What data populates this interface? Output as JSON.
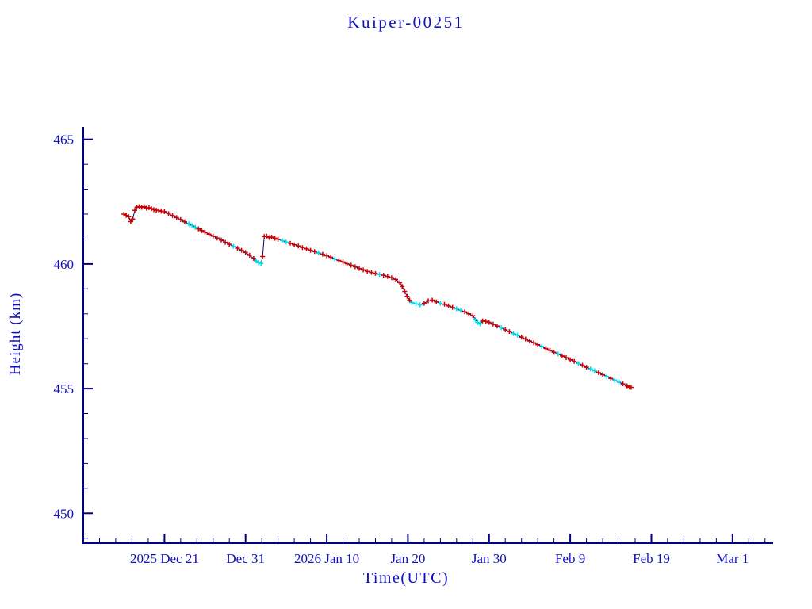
{
  "chart_data": {
    "type": "line",
    "title": "Kuiper-00251",
    "xlabel": "Time(UTC)",
    "ylabel": "Height (km)",
    "legend": "none",
    "grid": false,
    "colors": {
      "background": "#ffffff",
      "axis": "#000080",
      "text": "#0f0fc0",
      "line": "#000080",
      "marker_primary": "#cc0000",
      "marker_secondary": "#00dde8"
    },
    "x_axis": {
      "description": "x values are days relative to 2025 Dec 21 00:00 UTC",
      "range_days": [
        -10,
        75
      ],
      "tick_days": [
        0,
        10,
        20,
        30,
        40,
        50,
        60,
        70
      ],
      "tick_labels": [
        "2025 Dec 21",
        "Dec 31",
        "2026 Jan 10",
        "Jan 20",
        "Jan 30",
        "Feb 9",
        "Feb 19",
        "Mar 1"
      ],
      "minor_step_days": 2
    },
    "y_axis": {
      "range": [
        448.8,
        465.5
      ],
      "ticks": [
        450,
        455,
        460,
        465
      ],
      "minor_step": 1
    },
    "series": [
      {
        "name": "height_km",
        "marker_legend": "r = red plus marker, c = cyan plus marker",
        "points": [
          [
            -5.0,
            462.0,
            "r"
          ],
          [
            -4.7,
            461.95,
            "r"
          ],
          [
            -4.4,
            461.9,
            "r"
          ],
          [
            -4.15,
            461.7,
            "r"
          ],
          [
            -3.9,
            461.8,
            "r"
          ],
          [
            -3.65,
            462.15,
            "r"
          ],
          [
            -3.4,
            462.28,
            "r"
          ],
          [
            -3.1,
            462.3,
            "r"
          ],
          [
            -2.8,
            462.27,
            "r"
          ],
          [
            -2.5,
            462.3,
            "r"
          ],
          [
            -2.2,
            462.24,
            "r"
          ],
          [
            -1.9,
            462.26,
            "r"
          ],
          [
            -1.6,
            462.22,
            "r"
          ],
          [
            -1.3,
            462.18,
            "r"
          ],
          [
            -1.0,
            462.16,
            "r"
          ],
          [
            -0.7,
            462.14,
            "r"
          ],
          [
            -0.4,
            462.12,
            "r"
          ],
          [
            0.0,
            462.1,
            "r"
          ],
          [
            0.5,
            462.02,
            "r"
          ],
          [
            1.0,
            461.94,
            "r"
          ],
          [
            1.5,
            461.86,
            "r"
          ],
          [
            2.0,
            461.78,
            "r"
          ],
          [
            2.5,
            461.69,
            "r"
          ],
          [
            3.0,
            461.61,
            "c"
          ],
          [
            3.4,
            461.54,
            "c"
          ],
          [
            3.8,
            461.47,
            "c"
          ],
          [
            4.2,
            461.41,
            "r"
          ],
          [
            4.6,
            461.34,
            "r"
          ],
          [
            5.0,
            461.28,
            "r"
          ],
          [
            5.5,
            461.2,
            "r"
          ],
          [
            6.0,
            461.12,
            "r"
          ],
          [
            6.5,
            461.04,
            "r"
          ],
          [
            7.0,
            460.96,
            "r"
          ],
          [
            7.5,
            460.87,
            "r"
          ],
          [
            8.0,
            460.79,
            "r"
          ],
          [
            8.5,
            460.71,
            "c"
          ],
          [
            9.0,
            460.63,
            "r"
          ],
          [
            9.5,
            460.55,
            "r"
          ],
          [
            10.0,
            460.46,
            "r"
          ],
          [
            10.5,
            460.35,
            "r"
          ],
          [
            11.0,
            460.22,
            "r"
          ],
          [
            11.3,
            460.12,
            "c"
          ],
          [
            11.6,
            460.05,
            "c"
          ],
          [
            11.9,
            460.02,
            "c"
          ],
          [
            12.1,
            460.3,
            "r"
          ],
          [
            12.3,
            461.1,
            "r"
          ],
          [
            12.6,
            461.12,
            "r"
          ],
          [
            12.9,
            461.06,
            "r"
          ],
          [
            13.2,
            461.08,
            "r"
          ],
          [
            13.6,
            461.03,
            "r"
          ],
          [
            14.0,
            460.99,
            "r"
          ],
          [
            14.5,
            460.94,
            "c"
          ],
          [
            15.0,
            460.88,
            "c"
          ],
          [
            15.5,
            460.83,
            "r"
          ],
          [
            16.0,
            460.77,
            "r"
          ],
          [
            16.5,
            460.72,
            "r"
          ],
          [
            17.0,
            460.66,
            "r"
          ],
          [
            17.5,
            460.61,
            "r"
          ],
          [
            18.0,
            460.55,
            "r"
          ],
          [
            18.5,
            460.5,
            "r"
          ],
          [
            19.0,
            460.44,
            "c"
          ],
          [
            19.5,
            460.39,
            "r"
          ],
          [
            20.0,
            460.33,
            "r"
          ],
          [
            20.5,
            460.27,
            "r"
          ],
          [
            21.0,
            460.2,
            "c"
          ],
          [
            21.5,
            460.14,
            "r"
          ],
          [
            22.0,
            460.08,
            "r"
          ],
          [
            22.5,
            460.01,
            "r"
          ],
          [
            23.0,
            459.95,
            "r"
          ],
          [
            23.5,
            459.89,
            "r"
          ],
          [
            24.0,
            459.82,
            "r"
          ],
          [
            24.5,
            459.76,
            "r"
          ],
          [
            25.0,
            459.7,
            "r"
          ],
          [
            25.5,
            459.66,
            "r"
          ],
          [
            26.0,
            459.62,
            "r"
          ],
          [
            26.5,
            459.58,
            "c"
          ],
          [
            27.0,
            459.55,
            "r"
          ],
          [
            27.5,
            459.5,
            "r"
          ],
          [
            28.0,
            459.45,
            "r"
          ],
          [
            28.5,
            459.38,
            "r"
          ],
          [
            29.0,
            459.25,
            "r"
          ],
          [
            29.3,
            459.1,
            "r"
          ],
          [
            29.6,
            458.9,
            "r"
          ],
          [
            29.9,
            458.7,
            "r"
          ],
          [
            30.2,
            458.55,
            "r"
          ],
          [
            30.5,
            458.45,
            "c"
          ],
          [
            31.0,
            458.4,
            "c"
          ],
          [
            31.5,
            458.36,
            "c"
          ],
          [
            32.0,
            458.42,
            "r"
          ],
          [
            32.5,
            458.52,
            "r"
          ],
          [
            33.0,
            458.55,
            "r"
          ],
          [
            33.5,
            458.48,
            "r"
          ],
          [
            34.0,
            458.42,
            "c"
          ],
          [
            34.5,
            458.38,
            "r"
          ],
          [
            35.0,
            458.32,
            "r"
          ],
          [
            35.5,
            458.26,
            "r"
          ],
          [
            36.0,
            458.2,
            "c"
          ],
          [
            36.5,
            458.14,
            "c"
          ],
          [
            37.0,
            458.08,
            "r"
          ],
          [
            37.5,
            458.0,
            "r"
          ],
          [
            38.0,
            457.92,
            "r"
          ],
          [
            38.3,
            457.78,
            "c"
          ],
          [
            38.6,
            457.65,
            "c"
          ],
          [
            38.9,
            457.6,
            "c"
          ],
          [
            39.2,
            457.72,
            "r"
          ],
          [
            39.6,
            457.7,
            "r"
          ],
          [
            40.0,
            457.66,
            "r"
          ],
          [
            40.5,
            457.59,
            "r"
          ],
          [
            41.0,
            457.51,
            "r"
          ],
          [
            41.5,
            457.44,
            "c"
          ],
          [
            42.0,
            457.36,
            "r"
          ],
          [
            42.5,
            457.29,
            "r"
          ],
          [
            43.0,
            457.21,
            "c"
          ],
          [
            43.5,
            457.14,
            "c"
          ],
          [
            44.0,
            457.06,
            "r"
          ],
          [
            44.5,
            456.99,
            "r"
          ],
          [
            45.0,
            456.91,
            "r"
          ],
          [
            45.5,
            456.84,
            "r"
          ],
          [
            46.0,
            456.76,
            "r"
          ],
          [
            46.5,
            456.69,
            "c"
          ],
          [
            47.0,
            456.61,
            "r"
          ],
          [
            47.5,
            456.54,
            "r"
          ],
          [
            48.0,
            456.46,
            "r"
          ],
          [
            48.5,
            456.39,
            "c"
          ],
          [
            49.0,
            456.31,
            "r"
          ],
          [
            49.5,
            456.24,
            "r"
          ],
          [
            50.0,
            456.16,
            "r"
          ],
          [
            50.5,
            456.09,
            "r"
          ],
          [
            51.0,
            456.01,
            "c"
          ],
          [
            51.5,
            455.94,
            "r"
          ],
          [
            52.0,
            455.86,
            "r"
          ],
          [
            52.5,
            455.79,
            "c"
          ],
          [
            53.0,
            455.71,
            "c"
          ],
          [
            53.5,
            455.64,
            "r"
          ],
          [
            54.0,
            455.56,
            "r"
          ],
          [
            54.5,
            455.49,
            "c"
          ],
          [
            55.0,
            455.41,
            "r"
          ],
          [
            55.5,
            455.34,
            "c"
          ],
          [
            56.0,
            455.26,
            "c"
          ],
          [
            56.5,
            455.19,
            "r"
          ],
          [
            57.0,
            455.11,
            "r"
          ],
          [
            57.3,
            455.06,
            "r"
          ],
          [
            57.5,
            455.05,
            "r"
          ]
        ]
      }
    ]
  }
}
